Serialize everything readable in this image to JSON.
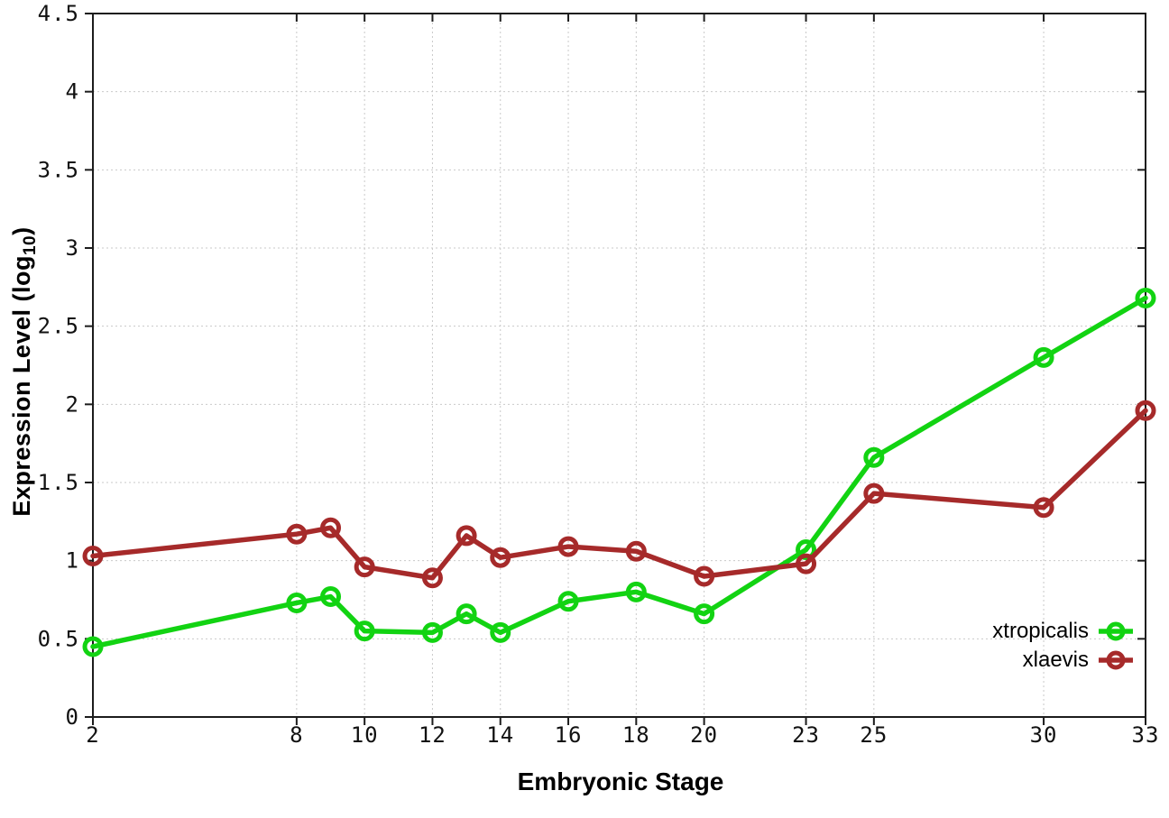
{
  "chart_data": {
    "type": "line",
    "title": "",
    "xlabel": "Embryonic Stage",
    "ylabel": "Expression Level (log10)",
    "ylabel_parts": {
      "prefix": "Expression Level (log",
      "sub": "10",
      "suffix": ")"
    },
    "x": [
      2,
      8,
      9,
      10,
      12,
      13,
      14,
      16,
      18,
      20,
      23,
      25,
      30,
      33
    ],
    "series": [
      {
        "name": "xtropicalis",
        "color": "#12d312",
        "values": [
          0.45,
          0.73,
          0.77,
          0.55,
          0.54,
          0.66,
          0.54,
          0.74,
          0.8,
          0.66,
          1.07,
          1.66,
          2.3,
          2.68
        ]
      },
      {
        "name": "xlaevis",
        "color": "#a62a2a",
        "values": [
          1.03,
          1.17,
          1.21,
          0.96,
          0.89,
          1.16,
          1.02,
          1.09,
          1.06,
          0.9,
          0.98,
          1.43,
          1.34,
          1.96
        ]
      }
    ],
    "x_ticks": [
      2,
      8,
      10,
      12,
      14,
      16,
      18,
      20,
      23,
      25,
      30,
      33
    ],
    "y_ticks": [
      "0",
      "0.5",
      "1",
      "1.5",
      "2",
      "2.5",
      "3",
      "3.5",
      "4",
      "4.5"
    ],
    "xlim": [
      2,
      33
    ],
    "ylim": [
      0,
      4.5
    ],
    "grid": true,
    "legend_position": "bottom-right",
    "colors": {
      "background": "#ffffff",
      "grid": "#c9c9c9",
      "axis": "#1c1c1c",
      "text": "#000000"
    }
  }
}
